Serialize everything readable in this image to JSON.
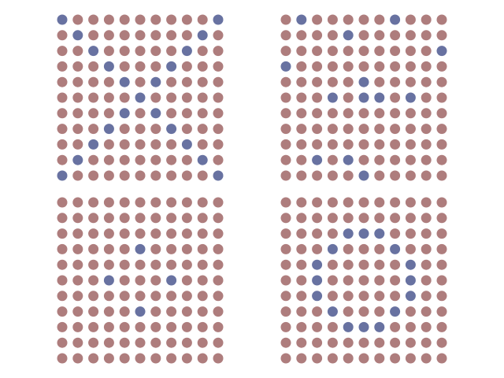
{
  "colors": {
    "background": "#ffffff",
    "inactive_dot": "#ae7d7d",
    "active_dot": "#6872a1"
  },
  "grid_size": {
    "rows": 11,
    "cols": 11
  },
  "panels": [
    {
      "name": "grid-top-left",
      "active_cells": [
        [
          0,
          0
        ],
        [
          0,
          10
        ],
        [
          1,
          1
        ],
        [
          1,
          9
        ],
        [
          2,
          2
        ],
        [
          2,
          8
        ],
        [
          3,
          3
        ],
        [
          3,
          7
        ],
        [
          4,
          4
        ],
        [
          4,
          6
        ],
        [
          5,
          5
        ],
        [
          6,
          4
        ],
        [
          6,
          6
        ],
        [
          7,
          3
        ],
        [
          7,
          7
        ],
        [
          8,
          2
        ],
        [
          8,
          8
        ],
        [
          9,
          1
        ],
        [
          9,
          9
        ],
        [
          10,
          0
        ],
        [
          10,
          10
        ]
      ]
    },
    {
      "name": "grid-top-right",
      "active_cells": [
        [
          0,
          1
        ],
        [
          0,
          7
        ],
        [
          1,
          4
        ],
        [
          2,
          10
        ],
        [
          3,
          0
        ],
        [
          4,
          5
        ],
        [
          5,
          3
        ],
        [
          5,
          5
        ],
        [
          5,
          6
        ],
        [
          5,
          8
        ],
        [
          9,
          2
        ],
        [
          9,
          4
        ],
        [
          10,
          5
        ]
      ]
    },
    {
      "name": "grid-bottom-left",
      "active_cells": [
        [
          3,
          5
        ],
        [
          5,
          3
        ],
        [
          5,
          7
        ],
        [
          7,
          5
        ]
      ]
    },
    {
      "name": "grid-bottom-right",
      "active_cells": [
        [
          2,
          4
        ],
        [
          2,
          5
        ],
        [
          2,
          6
        ],
        [
          3,
          3
        ],
        [
          3,
          7
        ],
        [
          4,
          2
        ],
        [
          4,
          8
        ],
        [
          5,
          2
        ],
        [
          5,
          8
        ],
        [
          6,
          2
        ],
        [
          6,
          8
        ],
        [
          7,
          3
        ],
        [
          7,
          7
        ],
        [
          8,
          4
        ],
        [
          8,
          5
        ],
        [
          8,
          6
        ]
      ]
    }
  ]
}
